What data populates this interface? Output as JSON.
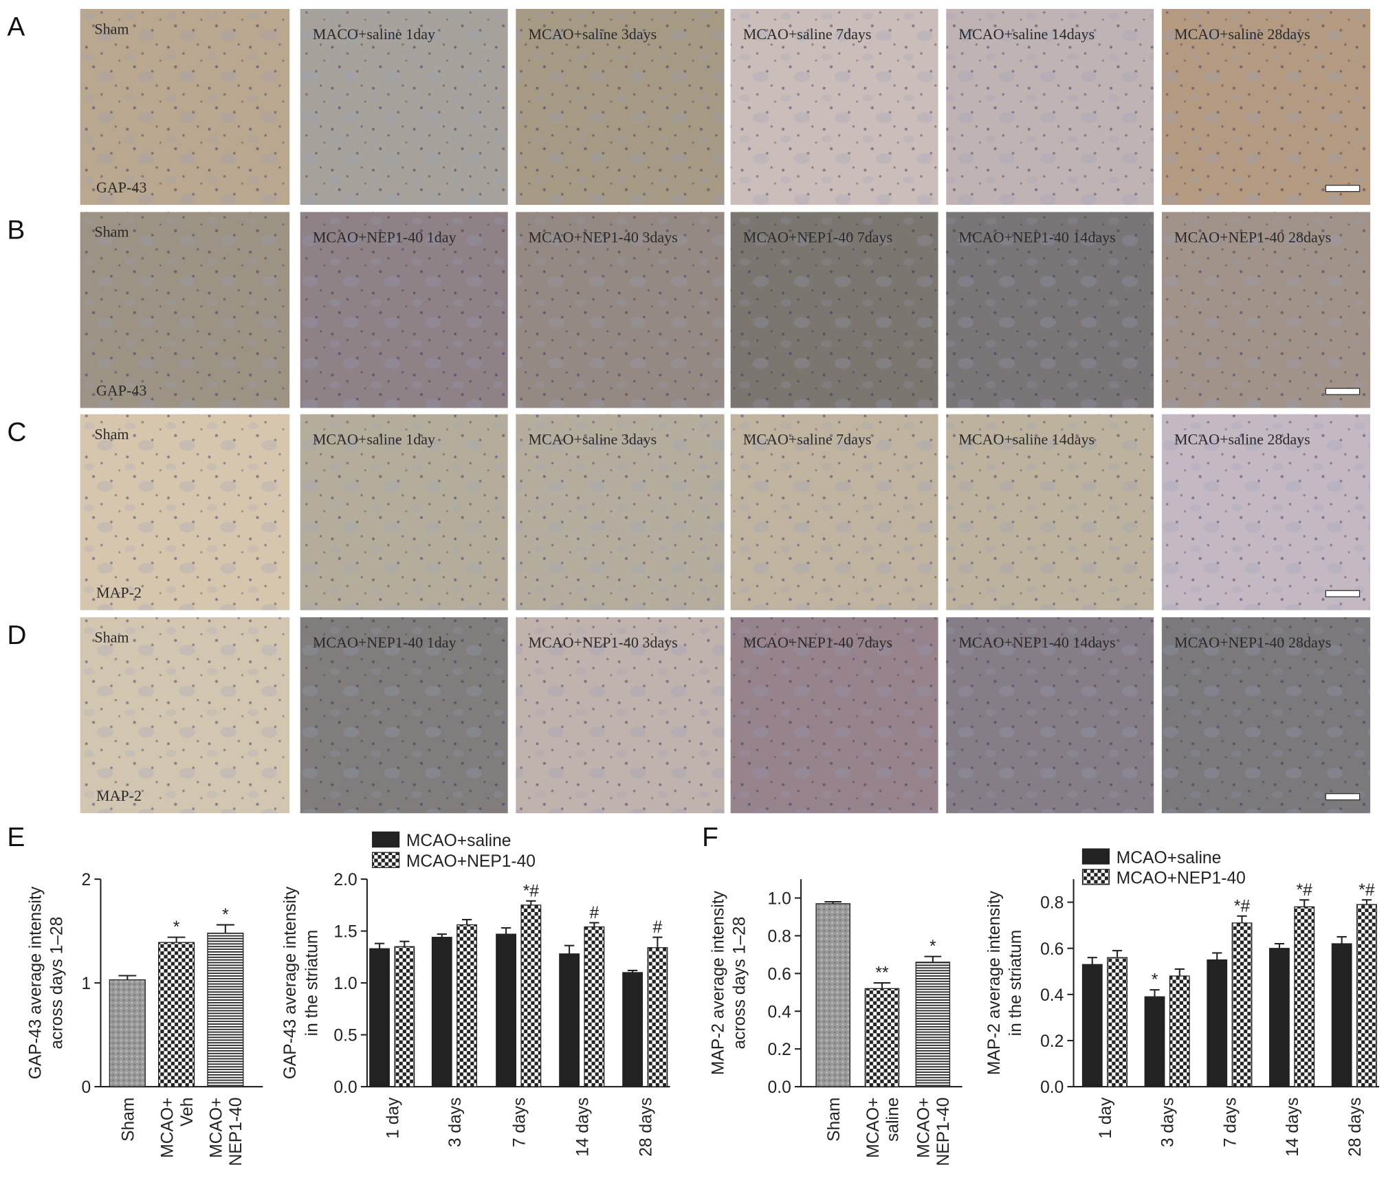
{
  "panel_letters": [
    "A",
    "B",
    "C",
    "D",
    "E",
    "F"
  ],
  "micrographs": {
    "rows": [
      {
        "stain": "GAP-43",
        "labels": [
          "Sham",
          "MACO+saline 1day",
          "MCAO+saline 3days",
          "MCAO+saline 7days",
          "MCAO+saline 14days",
          "MCAO+saline 28days"
        ]
      },
      {
        "stain": "GAP-43",
        "labels": [
          "Sham",
          "MCAO+NEP1-40 1day",
          "MCAO+NEP1-40 3days",
          "MCAO+NEP1-40 7days",
          "MCAO+NEP1-40 14days",
          "MCAO+NEP1-40 28days"
        ]
      },
      {
        "stain": "MAP-2",
        "labels": [
          "Sham",
          "MCAO+saline 1day",
          "MCAO+saline 3days",
          "MCAO+saline 7days",
          "MCAO+saline 14days",
          "MCAO+saline 28days"
        ]
      },
      {
        "stain": "MAP-2",
        "labels": [
          "Sham",
          "MCAO+NEP1-40 1day",
          "MCAO+NEP1-40 3days",
          "MCAO+NEP1-40 7days",
          "MCAO+NEP1-40 14days",
          "MCAO+NEP1-40 28days"
        ]
      }
    ]
  },
  "chart_data": [
    {
      "type": "bar",
      "ylabel": [
        "GAP-43 average intensity",
        "across days 1–28"
      ],
      "categories": [
        "Sham",
        "MCAO+\nVeh",
        "MCAO+\nNEP1-40"
      ],
      "values": [
        1.03,
        1.39,
        1.48
      ],
      "errors": [
        0.04,
        0.05,
        0.08
      ],
      "annotations": [
        null,
        "*",
        "*"
      ],
      "patterns": [
        "speckle",
        "checker",
        "hlines"
      ],
      "color": "#222222",
      "ylim": [
        0,
        2
      ],
      "yticks": [
        0,
        1,
        2
      ]
    },
    {
      "type": "bar",
      "ylabel": [
        "GAP-43 average intensity",
        "in the striatum"
      ],
      "categories": [
        "1 day",
        "3 days",
        "7 days",
        "14 days",
        "28 days"
      ],
      "series": [
        {
          "name": "MCAO+saline",
          "color": "#222222",
          "pattern": "solid",
          "values": [
            1.33,
            1.44,
            1.47,
            1.28,
            1.1
          ],
          "errors": [
            0.05,
            0.03,
            0.06,
            0.08,
            0.02
          ],
          "annotations": [
            null,
            null,
            null,
            null,
            null
          ]
        },
        {
          "name": "MCAO+NEP1-40",
          "color": "#222222",
          "pattern": "checker",
          "values": [
            1.35,
            1.56,
            1.75,
            1.54,
            1.34
          ],
          "errors": [
            0.05,
            0.05,
            0.04,
            0.04,
            0.1
          ],
          "annotations": [
            null,
            null,
            "*#",
            "#",
            "#"
          ]
        }
      ],
      "ylim": [
        0,
        2
      ],
      "yticks": [
        {
          "value": 0,
          "label": "0.0"
        },
        0.5,
        {
          "value": 1,
          "label": "1.0"
        },
        1.5,
        {
          "value": 2,
          "label": "2.0"
        }
      ]
    },
    {
      "type": "bar",
      "ylabel": [
        "MAP-2 average intensity",
        "across days 1–28"
      ],
      "categories": [
        "Sham",
        "MCAO+\nsaline",
        "MCAO+\nNEP1-40"
      ],
      "values": [
        0.97,
        0.52,
        0.66
      ],
      "errors": [
        0.01,
        0.03,
        0.03
      ],
      "annotations": [
        null,
        "**",
        "*"
      ],
      "patterns": [
        "speckle",
        "checker",
        "hlines"
      ],
      "color": "#222222",
      "ylim": [
        0,
        1.1
      ],
      "yticks": [
        {
          "value": 0,
          "label": "0.0"
        },
        0.2,
        0.4,
        0.6,
        0.8,
        {
          "value": 1,
          "label": "1.0"
        }
      ]
    },
    {
      "type": "bar",
      "ylabel": [
        "MAP-2 average intensity",
        "in the striatum"
      ],
      "categories": [
        "1 day",
        "3 days",
        "7 days",
        "14 days",
        "28 days"
      ],
      "series": [
        {
          "name": "MCAO+saline",
          "color": "#222222",
          "pattern": "solid",
          "values": [
            0.53,
            0.39,
            0.55,
            0.6,
            0.62
          ],
          "errors": [
            0.03,
            0.03,
            0.03,
            0.02,
            0.03
          ],
          "annotations": [
            null,
            "*",
            null,
            null,
            null
          ]
        },
        {
          "name": "MCAO+NEP1-40",
          "color": "#222222",
          "pattern": "checker",
          "values": [
            0.56,
            0.48,
            0.71,
            0.78,
            0.79
          ],
          "errors": [
            0.03,
            0.03,
            0.03,
            0.03,
            0.02
          ],
          "annotations": [
            null,
            null,
            "*#",
            "*#",
            "*#"
          ]
        }
      ],
      "ylim": [
        0,
        0.9
      ],
      "yticks": [
        {
          "value": 0,
          "label": "0.0"
        },
        0.2,
        0.4,
        0.6,
        0.8
      ]
    }
  ]
}
